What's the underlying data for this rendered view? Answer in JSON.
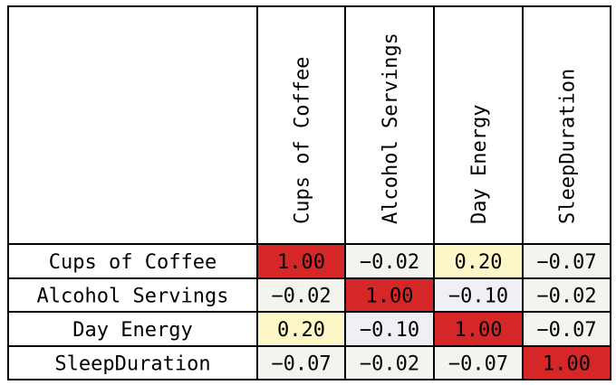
{
  "chart_data": {
    "type": "heatmap",
    "title": "",
    "row_labels": [
      "Cups of Coffee",
      "Alcohol Servings",
      "Day Energy",
      "SleepDuration"
    ],
    "column_labels": [
      "Cups of Coffee",
      "Alcohol Servings",
      "Day Energy",
      "SleepDuration"
    ],
    "values": [
      [
        1.0,
        -0.02,
        0.2,
        -0.07
      ],
      [
        -0.02,
        1.0,
        -0.1,
        -0.02
      ],
      [
        0.2,
        -0.1,
        1.0,
        -0.07
      ],
      [
        -0.07,
        -0.02,
        -0.07,
        1.0
      ]
    ],
    "value_labels": [
      [
        "1.00",
        "−0.02",
        "0.20",
        "−0.07"
      ],
      [
        "−0.02",
        "1.00",
        "−0.10",
        "−0.02"
      ],
      [
        "0.20",
        "−0.10",
        "1.00",
        "−0.07"
      ],
      [
        "−0.07",
        "−0.02",
        "−0.07",
        "1.00"
      ]
    ],
    "value_range": [
      -0.1,
      1.0
    ],
    "colors": {
      "high": "#d62728",
      "mid": "#fdf7c7",
      "neutral": "#f4f4ee",
      "low": "#eef0f4",
      "border": "#000000"
    }
  }
}
